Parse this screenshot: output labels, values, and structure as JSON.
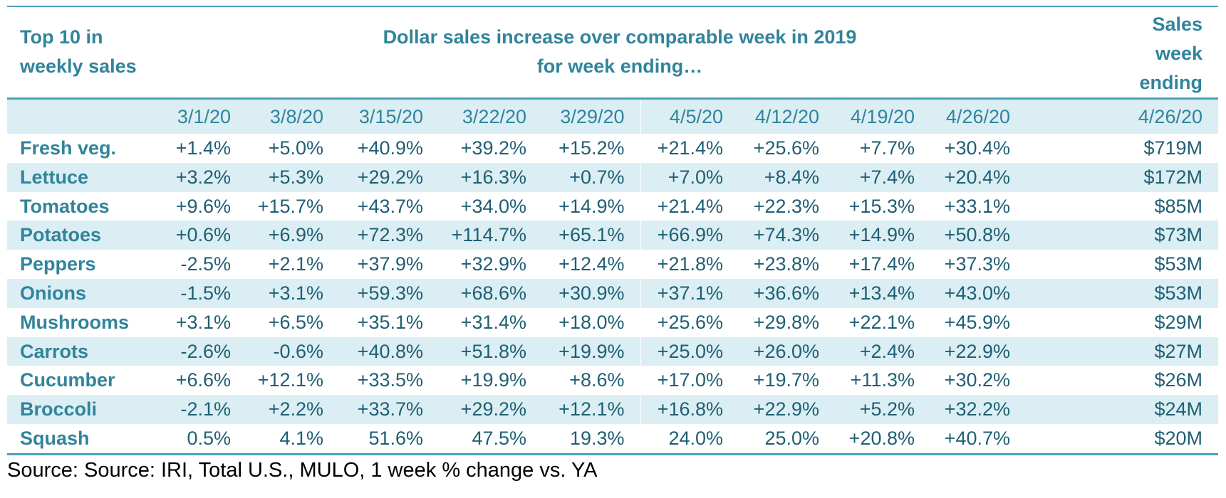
{
  "chart_data": {
    "type": "table",
    "header": {
      "left": [
        "Top 10 in",
        "weekly sales"
      ],
      "center": [
        "Dollar sales increase over comparable week in 2019",
        "for week ending…"
      ],
      "right": [
        "Sales",
        "week",
        "ending"
      ]
    },
    "date_row": [
      "",
      "3/1/20",
      "3/8/20",
      "3/15/20",
      "3/22/20",
      "3/29/20",
      "4/5/20",
      "4/12/20",
      "4/19/20",
      "4/26/20",
      "4/26/20"
    ],
    "rows": [
      {
        "label": "Fresh veg.",
        "values": [
          "+1.4%",
          "+5.0%",
          "+40.9%",
          "+39.2%",
          "+15.2%",
          "+21.4%",
          "+25.6%",
          "+7.7%",
          "+30.4%",
          "$719M"
        ]
      },
      {
        "label": "Lettuce",
        "values": [
          "+3.2%",
          "+5.3%",
          "+29.2%",
          "+16.3%",
          "+0.7%",
          "+7.0%",
          "+8.4%",
          "+7.4%",
          "+20.4%",
          "$172M"
        ]
      },
      {
        "label": "Tomatoes",
        "values": [
          "+9.6%",
          "+15.7%",
          "+43.7%",
          "+34.0%",
          "+14.9%",
          "+21.4%",
          "+22.3%",
          "+15.3%",
          "+33.1%",
          "$85M"
        ]
      },
      {
        "label": "Potatoes",
        "values": [
          "+0.6%",
          "+6.9%",
          "+72.3%",
          "+114.7%",
          "+65.1%",
          "+66.9%",
          "+74.3%",
          "+14.9%",
          "+50.8%",
          "$73M"
        ]
      },
      {
        "label": "Peppers",
        "values": [
          "-2.5%",
          "+2.1%",
          "+37.9%",
          "+32.9%",
          "+12.4%",
          "+21.8%",
          "+23.8%",
          "+17.4%",
          "+37.3%",
          "$53M"
        ]
      },
      {
        "label": "Onions",
        "values": [
          "-1.5%",
          "+3.1%",
          "+59.3%",
          "+68.6%",
          "+30.9%",
          "+37.1%",
          "+36.6%",
          "+13.4%",
          "+43.0%",
          "$53M"
        ]
      },
      {
        "label": "Mushrooms",
        "values": [
          "+3.1%",
          "+6.5%",
          "+35.1%",
          "+31.4%",
          "+18.0%",
          "+25.6%",
          "+29.8%",
          "+22.1%",
          "+45.9%",
          "$29M"
        ]
      },
      {
        "label": "Carrots",
        "values": [
          "-2.6%",
          "-0.6%",
          "+40.8%",
          "+51.8%",
          "+19.9%",
          "+25.0%",
          "+26.0%",
          "+2.4%",
          "+22.9%",
          "$27M"
        ]
      },
      {
        "label": "Cucumber",
        "values": [
          "+6.6%",
          "+12.1%",
          "+33.5%",
          "+19.9%",
          "+8.6%",
          "+17.0%",
          "+19.7%",
          "+11.3%",
          "+30.2%",
          "$26M"
        ]
      },
      {
        "label": "Broccoli",
        "values": [
          "-2.1%",
          "+2.2%",
          "+33.7%",
          "+29.2%",
          "+12.1%",
          "+16.8%",
          "+22.9%",
          "+5.2%",
          "+32.2%",
          "$24M"
        ]
      },
      {
        "label": "Squash",
        "values": [
          "0.5%",
          "4.1%",
          "51.6%",
          "47.5%",
          "19.3%",
          "24.0%",
          "25.0%",
          "+20.8%",
          "+40.7%",
          "$20M"
        ]
      }
    ],
    "source": "Source: Source: IRI, Total U.S., MULO, 1 week % change vs. YA"
  },
  "colors": {
    "accent": "#31849b",
    "rule": "#4aa0b8",
    "shade": "#daeef3",
    "text": "#1f5f74"
  }
}
